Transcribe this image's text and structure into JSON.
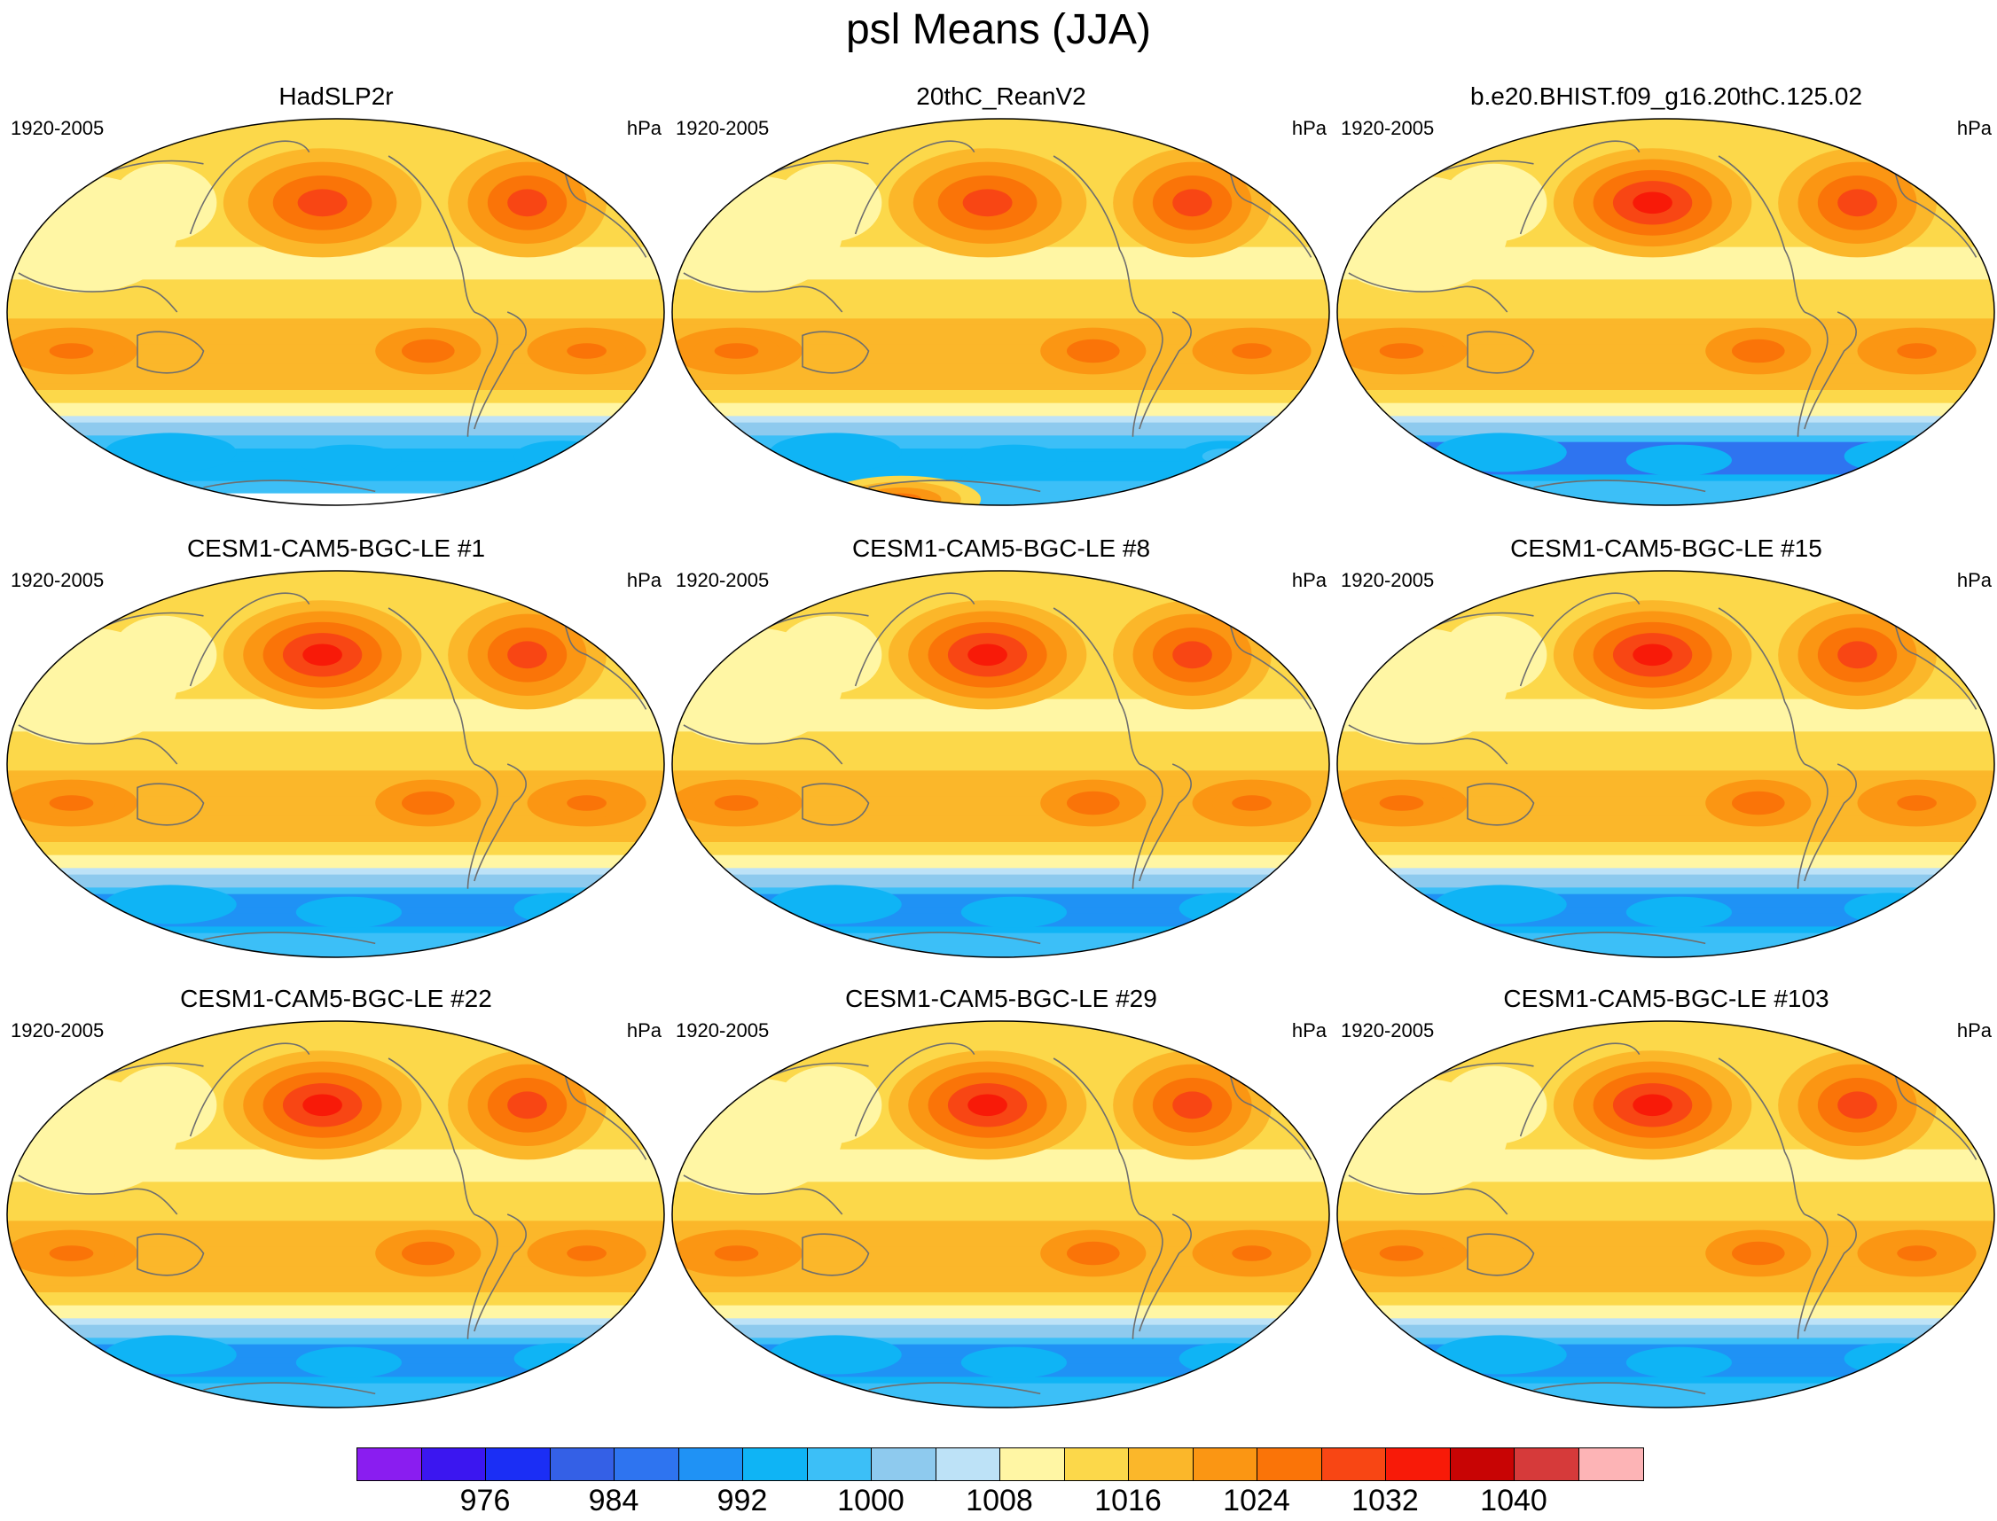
{
  "title": "psl Means (JJA)",
  "chart_data": {
    "type": "heatmap",
    "title": "psl Means (JJA)",
    "projection": "global map, Pacific-centered",
    "variable": "psl",
    "units": "hPa",
    "period": "1920-2005",
    "colorbar": {
      "levels": [
        972,
        976,
        980,
        984,
        988,
        992,
        996,
        1000,
        1004,
        1008,
        1012,
        1016,
        1020,
        1024,
        1028,
        1032,
        1036,
        1040,
        1044
      ],
      "tick_labels": [
        "976",
        "984",
        "992",
        "1000",
        "1008",
        "1016",
        "1024",
        "1032",
        "1040"
      ],
      "tick_values": [
        976,
        984,
        992,
        1000,
        1008,
        1016,
        1024,
        1032,
        1040
      ],
      "colors": [
        "#8a1df0",
        "#3b16f0",
        "#1b2ef5",
        "#3460e6",
        "#2e74f0",
        "#1f92f5",
        "#0fb4f5",
        "#3cbff7",
        "#8ecaee",
        "#bde2f7",
        "#fff6a4",
        "#fcd84a",
        "#fbb72a",
        "#fb9613",
        "#fa7408",
        "#f84614",
        "#f81a08",
        "#c80404",
        "#d63a3a",
        "#fdb4b6"
      ]
    },
    "panels": [
      {
        "title": "HadSLP2r",
        "period": "1920-2005",
        "units": "hPa",
        "aleutian_high_max": 1028,
        "azores_high_max": 1028,
        "southern_ocean_min": 988,
        "antarctic_missing": true
      },
      {
        "title": "20thC_ReanV2",
        "period": "1920-2005",
        "units": "hPa",
        "aleutian_high_max": 1028,
        "azores_high_max": 1028,
        "southern_ocean_min": 992,
        "antarctic_max": 1024
      },
      {
        "title": "b.e20.BHIST.f09_g16.20thC.125.02",
        "period": "1920-2005",
        "units": "hPa",
        "aleutian_high_max": 1032,
        "azores_high_max": 1028,
        "southern_ocean_min": 976
      },
      {
        "title": "CESM1-CAM5-BGC-LE #1",
        "period": "1920-2005",
        "units": "hPa",
        "aleutian_high_max": 1032,
        "azores_high_max": 1028,
        "southern_ocean_min": 980
      },
      {
        "title": "CESM1-CAM5-BGC-LE #8",
        "period": "1920-2005",
        "units": "hPa",
        "aleutian_high_max": 1032,
        "azores_high_max": 1028,
        "southern_ocean_min": 980
      },
      {
        "title": "CESM1-CAM5-BGC-LE #15",
        "period": "1920-2005",
        "units": "hPa",
        "aleutian_high_max": 1032,
        "azores_high_max": 1028,
        "southern_ocean_min": 980
      },
      {
        "title": "CESM1-CAM5-BGC-LE #22",
        "period": "1920-2005",
        "units": "hPa",
        "aleutian_high_max": 1032,
        "azores_high_max": 1028,
        "southern_ocean_min": 980
      },
      {
        "title": "CESM1-CAM5-BGC-LE #29",
        "period": "1920-2005",
        "units": "hPa",
        "aleutian_high_max": 1032,
        "azores_high_max": 1028,
        "southern_ocean_min": 980
      },
      {
        "title": "CESM1-CAM5-BGC-LE #103",
        "period": "1920-2005",
        "units": "hPa",
        "aleutian_high_max": 1032,
        "azores_high_max": 1028,
        "southern_ocean_min": 980
      }
    ]
  }
}
